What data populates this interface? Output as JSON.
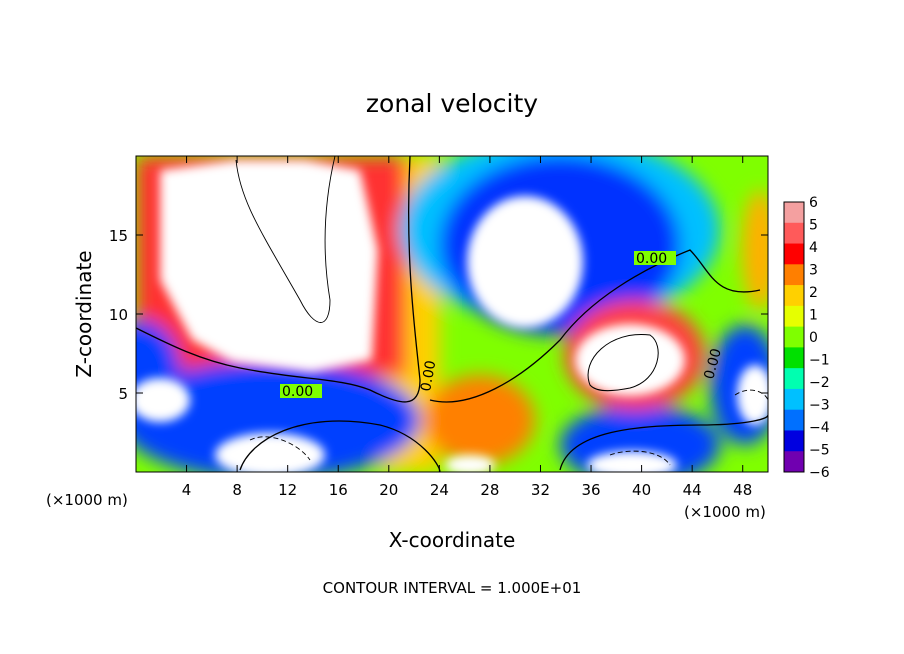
{
  "chart_data": {
    "type": "heatmap",
    "title": "zonal velocity",
    "xlabel": "X-coordinate",
    "ylabel": "Z-coordinate",
    "x_unit": "(×1000 m)",
    "x_unit_right": "(×1000 m)",
    "xlim": [
      0,
      50
    ],
    "ylim": [
      0,
      20
    ],
    "x_ticks": [
      4,
      8,
      12,
      16,
      20,
      24,
      28,
      32,
      36,
      40,
      44,
      48
    ],
    "y_ticks": [
      5,
      10,
      15
    ],
    "footer": "CONTOUR INTERVAL = 1.000E+01",
    "contour_labels": [
      "0.00",
      "0.00",
      "0.00",
      "0.00"
    ],
    "colorbar": {
      "labels": [
        "6",
        "5",
        "4",
        "3",
        "2",
        "1",
        "0",
        "−1",
        "−2",
        "−3",
        "−4",
        "−5",
        "−6"
      ],
      "colors": [
        "#f4a0a0",
        "#ff5a5a",
        "#ff0000",
        "#ff7f00",
        "#ffd000",
        "#e6ff00",
        "#7fff00",
        "#00e000",
        "#00ffb0",
        "#00c0ff",
        "#0070ff",
        "#0000e0",
        "#7000b0"
      ]
    },
    "grid": false
  }
}
